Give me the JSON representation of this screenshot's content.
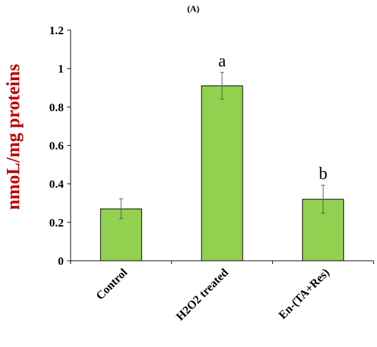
{
  "panel_label": "(A)",
  "chart_data": {
    "type": "bar",
    "title": "",
    "xlabel": "",
    "ylabel": "nmoL/mg proteins",
    "ylim": [
      0,
      1.2
    ],
    "yticks": [
      "0",
      "0.2",
      "0.4",
      "0.6",
      "0.8",
      "1",
      "1.2"
    ],
    "categories": [
      "Control",
      "H2O2 treated",
      "En-(TA+Res)"
    ],
    "values": [
      0.27,
      0.91,
      0.32
    ],
    "errors": [
      0.052,
      0.07,
      0.073
    ],
    "significance": [
      "",
      "a",
      "b"
    ],
    "bar_color": "#92d050",
    "bar_edge_color": "#000000",
    "ylabel_color": "#c00000",
    "grid": false,
    "legend": "none"
  }
}
